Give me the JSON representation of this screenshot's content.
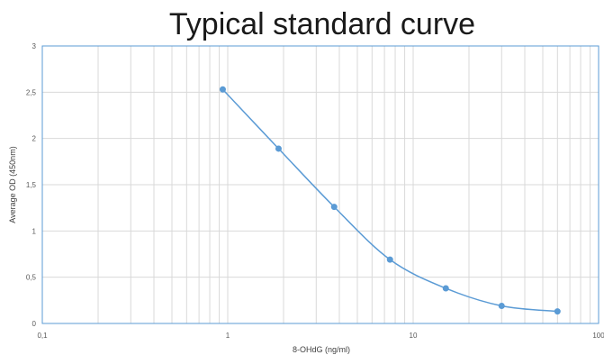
{
  "chart_data": {
    "type": "scatter",
    "title": "Typical standard curve",
    "xlabel": "8-OHdG (ng/ml)",
    "ylabel": "Average OD (450nm)",
    "x_scale": "log",
    "xlim": [
      0.1,
      100
    ],
    "ylim": [
      0,
      3
    ],
    "x_tick_labels": [
      "0,1",
      "1",
      "10",
      "100"
    ],
    "y_tick_labels": [
      "0",
      "0,5",
      "1",
      "1,5",
      "2",
      "2,5",
      "3"
    ],
    "grid": true,
    "legend": "none",
    "smooth_line": true,
    "series": [
      {
        "x": [
          0.94,
          1.88,
          3.75,
          7.5,
          15,
          30,
          60
        ],
        "values": [
          2.53,
          1.89,
          1.26,
          0.69,
          0.38,
          0.19,
          0.13
        ]
      }
    ],
    "colors": {
      "series": "#5b9bd5",
      "grid": "#d9d9d9",
      "plot_border": "#5b9bd5"
    }
  }
}
